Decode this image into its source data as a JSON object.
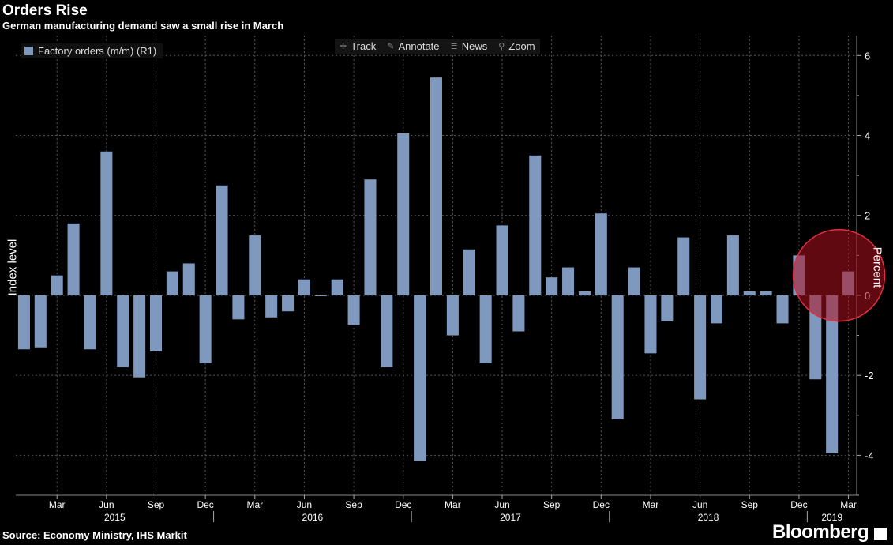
{
  "title": "Orders Rise",
  "subtitle": "German manufacturing demand saw a small rise in March",
  "source": "Source: Economy Ministry, IHS Markit",
  "brand": "Bloomberg",
  "toolbar": {
    "track": "Track",
    "annotate": "Annotate",
    "news": "News",
    "zoom": "Zoom"
  },
  "colors": {
    "bar": "#7f98bd",
    "highlight": "#b0101f",
    "grid": "#555555"
  },
  "chart_data": {
    "type": "bar",
    "legend": "Factory orders (m/m) (R1)",
    "ylabel_left": "Index level",
    "ylabel_right": "Percent",
    "ylim": [
      -5,
      6.5
    ],
    "yticks": [
      6,
      4,
      2,
      0,
      -2,
      -4
    ],
    "grid": true,
    "legend_position": "top-left",
    "x_tick_labels": [
      "Mar",
      "Jun",
      "Sep",
      "Dec",
      "Mar",
      "Jun",
      "Sep",
      "Dec",
      "Mar",
      "Jun",
      "Sep",
      "Dec",
      "Mar",
      "Jun",
      "Sep",
      "Dec",
      "Mar"
    ],
    "year_labels": [
      "2015",
      "2016",
      "2017",
      "2018",
      "2019"
    ],
    "categories": [
      "Jan 2015",
      "Feb 2015",
      "Mar 2015",
      "Apr 2015",
      "May 2015",
      "Jun 2015",
      "Jul 2015",
      "Aug 2015",
      "Sep 2015",
      "Oct 2015",
      "Nov 2015",
      "Dec 2015",
      "Jan 2016",
      "Feb 2016",
      "Mar 2016",
      "Apr 2016",
      "May 2016",
      "Jun 2016",
      "Jul 2016",
      "Aug 2016",
      "Sep 2016",
      "Oct 2016",
      "Nov 2016",
      "Dec 2016",
      "Jan 2017",
      "Feb 2017",
      "Mar 2017",
      "Apr 2017",
      "May 2017",
      "Jun 2017",
      "Jul 2017",
      "Aug 2017",
      "Sep 2017",
      "Oct 2017",
      "Nov 2017",
      "Dec 2017",
      "Jan 2018",
      "Feb 2018",
      "Mar 2018",
      "Apr 2018",
      "May 2018",
      "Jun 2018",
      "Jul 2018",
      "Aug 2018",
      "Sep 2018",
      "Oct 2018",
      "Nov 2018",
      "Dec 2018",
      "Jan 2019",
      "Feb 2019",
      "Mar 2019"
    ],
    "values": [
      -1.35,
      -1.3,
      0.5,
      1.8,
      -1.35,
      3.6,
      -1.8,
      -2.05,
      -1.4,
      0.6,
      0.8,
      -1.7,
      2.75,
      -0.6,
      1.5,
      -0.55,
      -0.4,
      0.4,
      0,
      0.4,
      -0.75,
      2.9,
      -1.8,
      4.05,
      -4.15,
      5.45,
      -1.0,
      1.15,
      -1.7,
      1.75,
      -0.9,
      3.5,
      0.45,
      0.7,
      0.1,
      2.05,
      -3.1,
      0.7,
      -1.45,
      -0.65,
      1.45,
      -2.6,
      -0.7,
      1.5,
      0.1,
      0.1,
      -0.7,
      1.0,
      -2.1,
      -3.95,
      0.6
    ],
    "highlight_index": 50
  }
}
